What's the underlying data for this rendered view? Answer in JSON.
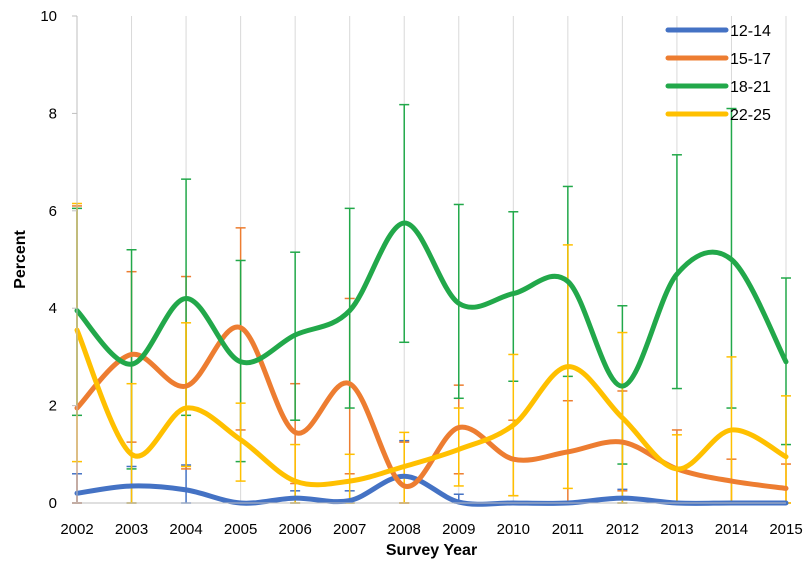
{
  "chart_data": {
    "type": "line",
    "title": "",
    "xlabel": "Survey Year",
    "ylabel": "Percent",
    "ylim": [
      0,
      10
    ],
    "yticks": [
      0,
      2,
      4,
      6,
      8,
      10
    ],
    "grid": "vertical",
    "legend_position": "top-right",
    "x": [
      "2002",
      "2003",
      "2004",
      "2005",
      "2006",
      "2007",
      "2008",
      "2009",
      "2010",
      "2011",
      "2012",
      "2013",
      "2014",
      "2015"
    ],
    "series": [
      {
        "name": "12-14",
        "color": "#4472C4",
        "values": [
          0.2,
          0.35,
          0.27,
          0.0,
          0.1,
          0.05,
          0.55,
          0.02,
          0.0,
          0.0,
          0.1,
          0.0,
          0.0,
          0.0
        ],
        "err_low": [
          0.0,
          0.0,
          0.0,
          0.0,
          0.0,
          0.0,
          0.0,
          0.0,
          0.0,
          0.0,
          0.0,
          0.0,
          0.0,
          0.0
        ],
        "err_high": [
          0.6,
          0.75,
          0.78,
          0.0,
          0.25,
          0.25,
          1.28,
          0.18,
          0.0,
          0.0,
          0.28,
          0.0,
          0.0,
          0.0
        ]
      },
      {
        "name": "15-17",
        "color": "#ED7D31",
        "values": [
          1.95,
          3.05,
          2.4,
          3.6,
          1.45,
          2.45,
          0.35,
          1.55,
          0.9,
          1.05,
          1.25,
          0.7,
          0.45,
          0.3
        ],
        "err_low": [
          0.0,
          1.25,
          0.7,
          1.5,
          0.4,
          0.6,
          0.0,
          0.6,
          0.15,
          0.0,
          0.25,
          0.0,
          0.0,
          0.0
        ],
        "err_high": [
          6.1,
          4.75,
          4.65,
          5.65,
          2.45,
          4.2,
          1.25,
          2.42,
          1.7,
          2.1,
          2.3,
          1.5,
          0.9,
          0.8
        ]
      },
      {
        "name": "18-21",
        "color": "#22A84A",
        "values": [
          3.95,
          2.85,
          4.2,
          2.9,
          3.45,
          3.95,
          5.75,
          4.1,
          4.3,
          4.55,
          2.4,
          4.7,
          5.0,
          2.9
        ],
        "err_low": [
          1.8,
          0.7,
          1.8,
          0.85,
          1.7,
          1.95,
          3.3,
          2.15,
          2.5,
          2.6,
          0.8,
          2.35,
          1.95,
          1.2
        ],
        "err_high": [
          6.05,
          5.2,
          6.65,
          4.98,
          5.15,
          6.05,
          8.18,
          6.13,
          5.98,
          6.5,
          4.05,
          7.15,
          8.1,
          4.62
        ]
      },
      {
        "name": "22-25",
        "color": "#FFC000",
        "values": [
          3.55,
          1.0,
          1.95,
          1.3,
          0.45,
          0.45,
          0.75,
          1.1,
          1.6,
          2.8,
          1.75,
          0.7,
          1.5,
          0.95
        ],
        "err_low": [
          0.85,
          0.0,
          0.75,
          0.45,
          0.0,
          0.0,
          0.0,
          0.35,
          0.15,
          0.3,
          0.0,
          0.0,
          0.0,
          0.0
        ],
        "err_high": [
          6.15,
          2.45,
          3.7,
          2.05,
          1.2,
          1.0,
          1.45,
          1.95,
          3.05,
          5.3,
          3.5,
          1.4,
          3.0,
          2.2
        ]
      }
    ]
  }
}
